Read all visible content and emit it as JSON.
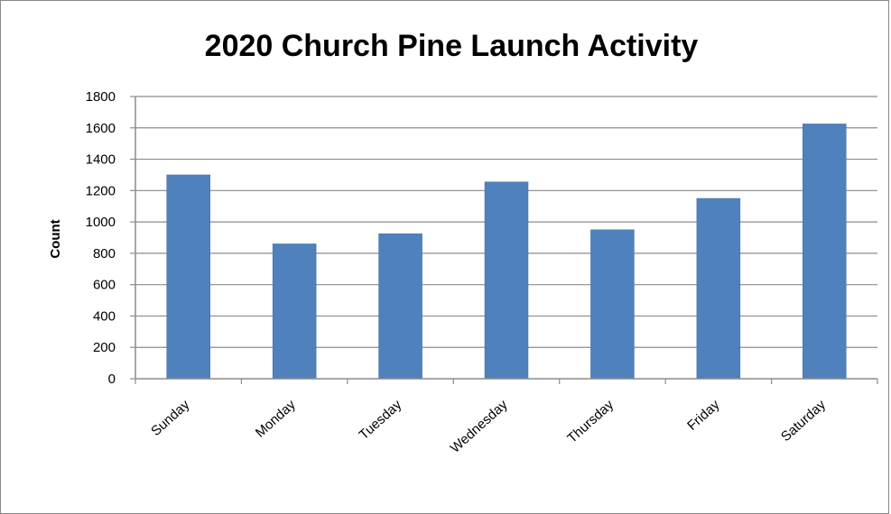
{
  "chart_data": {
    "type": "bar",
    "title": "2020 Church Pine Launch Activity",
    "xlabel": "",
    "ylabel": "Count",
    "categories": [
      "Sunday",
      "Monday",
      "Tuesday",
      "Wednesday",
      "Thursday",
      "Friday",
      "Saturday"
    ],
    "values": [
      1300,
      860,
      925,
      1255,
      950,
      1150,
      1625
    ],
    "ylim": [
      0,
      1800
    ],
    "yticks": [
      0,
      200,
      400,
      600,
      800,
      1000,
      1200,
      1400,
      1600,
      1800
    ],
    "grid": true,
    "legend": "none",
    "colors": {
      "bar": "#4F81BD",
      "bar_edge": "#3E6FA8",
      "grid": "#8C8C8C",
      "axis": "#8C8C8C"
    }
  }
}
